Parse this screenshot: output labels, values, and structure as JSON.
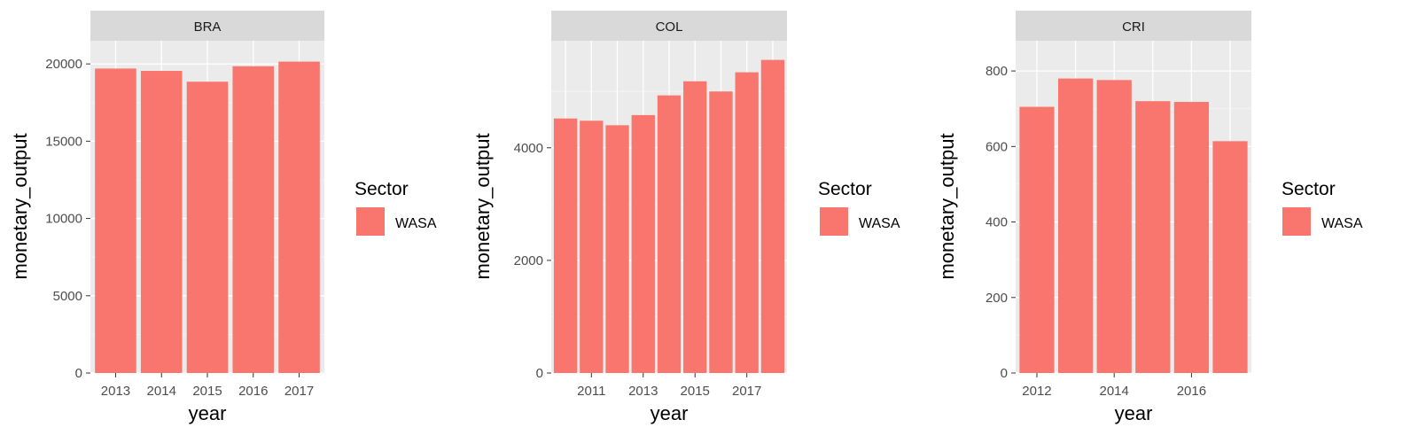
{
  "colors": {
    "bar": "#F8766D",
    "panel_bg": "#EBEBEB",
    "strip_bg": "#D9D9D9",
    "grid_major": "#FFFFFF",
    "grid_minor": "#F5F5F5",
    "tick_text": "#4D4D4D"
  },
  "chart_data": [
    {
      "type": "bar",
      "facet": "BRA",
      "xlabel": "year",
      "ylabel": "monetary_output",
      "x": [
        2013,
        2014,
        2015,
        2016,
        2017
      ],
      "values": [
        19700,
        19550,
        18850,
        19850,
        20150
      ],
      "xlim": [
        2012.45,
        2017.55
      ],
      "ylim": [
        0,
        21500
      ],
      "xticks": [
        2013,
        2014,
        2015,
        2016,
        2017
      ],
      "yticks": [
        0,
        5000,
        10000,
        15000,
        20000
      ],
      "legend": {
        "title": "Sector",
        "entries": [
          "WASA"
        ],
        "position": "right"
      },
      "grid": true
    },
    {
      "type": "bar",
      "facet": "COL",
      "xlabel": "year",
      "ylabel": "monetary_output",
      "x": [
        2010,
        2011,
        2012,
        2013,
        2014,
        2015,
        2016,
        2017,
        2018
      ],
      "values": [
        4520,
        4480,
        4400,
        4580,
        4930,
        5180,
        5000,
        5340,
        5560
      ],
      "xlim": [
        2009.45,
        2018.55
      ],
      "ylim": [
        0,
        5900
      ],
      "xticks": [
        2011,
        2013,
        2015,
        2017
      ],
      "yticks": [
        0,
        2000,
        4000
      ],
      "legend": {
        "title": "Sector",
        "entries": [
          "WASA"
        ],
        "position": "right"
      },
      "grid": true
    },
    {
      "type": "bar",
      "facet": "CRI",
      "xlabel": "year",
      "ylabel": "monetary_output",
      "x": [
        2012,
        2013,
        2014,
        2015,
        2016,
        2017
      ],
      "values": [
        705,
        780,
        776,
        720,
        718,
        614
      ],
      "xlim": [
        2011.45,
        2017.55
      ],
      "ylim": [
        0,
        880
      ],
      "xticks": [
        2012,
        2014,
        2016
      ],
      "yticks": [
        0,
        200,
        400,
        600,
        800
      ],
      "legend": {
        "title": "Sector",
        "entries": [
          "WASA"
        ],
        "position": "right"
      },
      "grid": true
    }
  ]
}
